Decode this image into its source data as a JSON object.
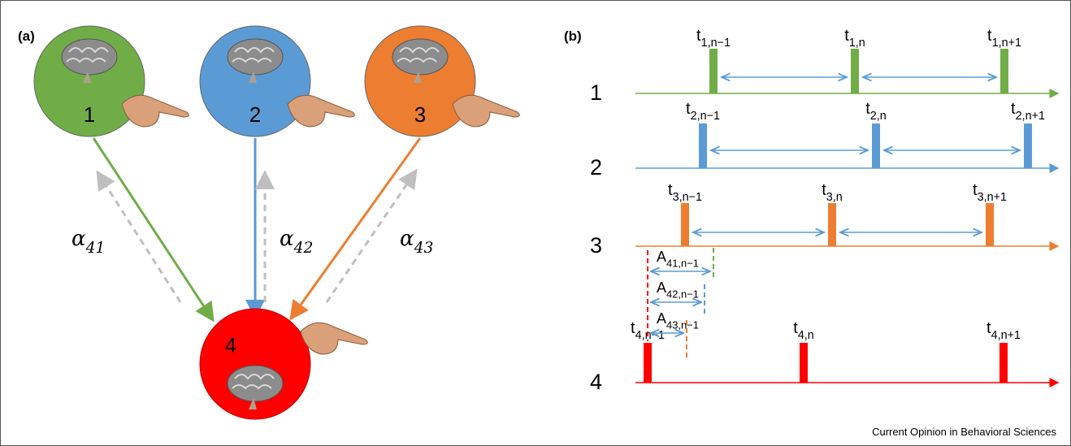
{
  "panel_a": {
    "label": "(a)",
    "nodes": [
      {
        "label": "1"
      },
      {
        "label": "2"
      },
      {
        "label": "3"
      },
      {
        "label": "4"
      }
    ],
    "couplings": [
      {
        "symbol": "α",
        "subscript": "41"
      },
      {
        "symbol": "α",
        "subscript": "42"
      },
      {
        "symbol": "α",
        "subscript": "43"
      }
    ]
  },
  "panel_b": {
    "label": "(b)",
    "rows": [
      {
        "label": "1",
        "events": [
          {
            "base": "t",
            "subscript": "1,n−1"
          },
          {
            "base": "t",
            "subscript": "1,n"
          },
          {
            "base": "t",
            "subscript": "1,n+1"
          }
        ]
      },
      {
        "label": "2",
        "events": [
          {
            "base": "t",
            "subscript": "2,n−1"
          },
          {
            "base": "t",
            "subscript": "2,n"
          },
          {
            "base": "t",
            "subscript": "2,n+1"
          }
        ]
      },
      {
        "label": "3",
        "events": [
          {
            "base": "t",
            "subscript": "3,n−1"
          },
          {
            "base": "t",
            "subscript": "3,n"
          },
          {
            "base": "t",
            "subscript": "3,n+1"
          }
        ]
      },
      {
        "label": "4",
        "events": [
          {
            "base": "t",
            "subscript": "4,n−1"
          },
          {
            "base": "t",
            "subscript": "4,n"
          },
          {
            "base": "t",
            "subscript": "4,n+1"
          }
        ]
      }
    ],
    "asynchronies": [
      {
        "base": "A",
        "subscript": "41,n−1"
      },
      {
        "base": "A",
        "subscript": "42,n−1"
      },
      {
        "base": "A",
        "subscript": "43,n−1"
      }
    ]
  },
  "footer": "Current Opinion in Behavioral Sciences"
}
